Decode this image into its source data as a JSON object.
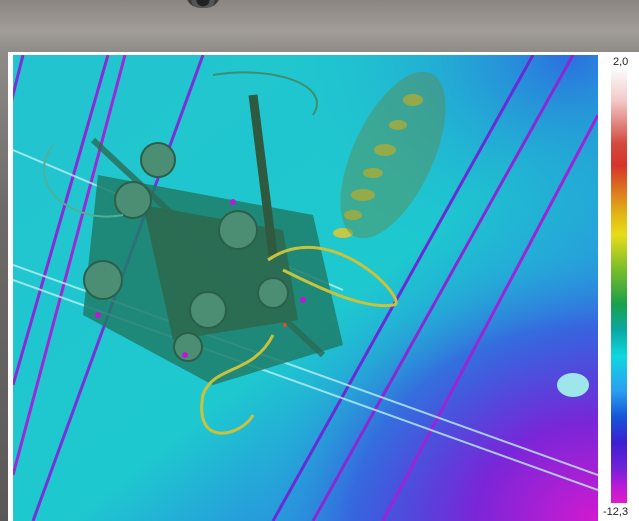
{
  "thermal_scale": {
    "max_label": "2,0",
    "min_label": "-12,3",
    "palette": [
      "#fafafa",
      "#d7342b",
      "#e8dc18",
      "#1aa04a",
      "#0fd7df",
      "#1557d8",
      "#7322d8",
      "#e11bc9"
    ]
  },
  "scene": {
    "description_colors": {
      "background": "#1ec8cf",
      "cold_region": "#6a2fd8",
      "warm_band": "#d6c83a",
      "equipment": "#1e7a6a"
    }
  }
}
